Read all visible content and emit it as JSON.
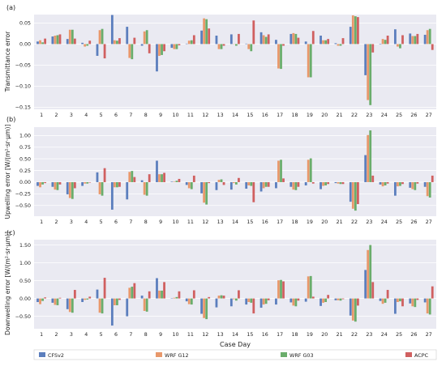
{
  "chart_data": [
    {
      "panel_label": "(a)",
      "type": "bar",
      "ylabel": "Transmittance error",
      "xlabel": "",
      "categories": [
        "1",
        "2",
        "3",
        "4",
        "5",
        "6",
        "7",
        "8",
        "9",
        "10",
        "11",
        "12",
        "13",
        "14",
        "15",
        "16",
        "17",
        "18",
        "19",
        "20",
        "21",
        "22",
        "23",
        "24",
        "25",
        "26",
        "27"
      ],
      "ylim": [
        -0.155,
        0.07
      ],
      "yticks": [
        0.05,
        0.0,
        -0.05,
        -0.1,
        -0.15
      ],
      "ytick_labels": [
        "0.05",
        "0.00",
        "−0.05",
        "−0.10",
        "−0.15"
      ],
      "grid": true,
      "series": [
        {
          "name": "CFSv2",
          "color": "#5b7ebd",
          "values": [
            0.006,
            0.018,
            0.012,
            0.003,
            -0.028,
            0.069,
            0.041,
            -0.004,
            -0.065,
            -0.009,
            0.001,
            0.032,
            0.02,
            0.023,
            0.001,
            0.028,
            0.01,
            0.024,
            0.006,
            0.02,
            0.002,
            0.041,
            -0.074,
            -0.001,
            0.035,
            0.025,
            0.022
          ]
        },
        {
          "name": "WRF G12",
          "color": "#e8986b",
          "values": [
            0.009,
            0.02,
            0.034,
            -0.006,
            0.033,
            0.009,
            -0.033,
            0.03,
            -0.028,
            -0.012,
            0.008,
            0.061,
            -0.012,
            0.0,
            -0.012,
            0.021,
            -0.058,
            0.026,
            -0.079,
            0.009,
            -0.004,
            0.068,
            -0.133,
            0.012,
            -0.006,
            0.019,
            0.033
          ]
        },
        {
          "name": "WRF G03",
          "color": "#6aad6b",
          "values": [
            0.004,
            0.021,
            0.034,
            -0.004,
            0.036,
            0.008,
            -0.036,
            0.033,
            -0.026,
            -0.012,
            0.009,
            0.059,
            -0.012,
            -0.004,
            -0.017,
            0.017,
            -0.059,
            0.024,
            -0.079,
            0.009,
            -0.004,
            0.066,
            -0.145,
            0.01,
            -0.01,
            0.019,
            0.036
          ]
        },
        {
          "name": "ACPC",
          "color": "#d06060",
          "values": [
            0.013,
            0.023,
            0.013,
            0.008,
            -0.034,
            0.014,
            0.015,
            -0.022,
            -0.017,
            -0.003,
            0.021,
            0.037,
            -0.004,
            0.024,
            0.056,
            0.023,
            -0.004,
            0.015,
            0.031,
            0.012,
            0.014,
            0.064,
            -0.02,
            0.02,
            0.021,
            0.024,
            -0.014
          ]
        }
      ]
    },
    {
      "panel_label": "(b)",
      "type": "bar",
      "ylabel": "Upwelling error [W/(m²·sr·μm)]",
      "xlabel": "",
      "categories": [
        "1",
        "2",
        "3",
        "4",
        "5",
        "6",
        "7",
        "8",
        "9",
        "10",
        "11",
        "12",
        "13",
        "14",
        "15",
        "16",
        "17",
        "18",
        "19",
        "20",
        "21",
        "22",
        "23",
        "24",
        "25",
        "26",
        "27"
      ],
      "ylim": [
        -0.73,
        1.18
      ],
      "yticks": [
        1.0,
        0.75,
        0.5,
        0.25,
        0.0,
        -0.25,
        -0.5
      ],
      "ytick_labels": [
        "1.00",
        "0.75",
        "0.50",
        "0.25",
        "0.00",
        "−0.25",
        "−0.50"
      ],
      "grid": true,
      "series": [
        {
          "name": "CFSv2",
          "color": "#5b7ebd",
          "values": [
            -0.08,
            -0.1,
            -0.26,
            -0.08,
            0.21,
            -0.59,
            -0.37,
            0.04,
            0.46,
            0.01,
            -0.06,
            -0.24,
            -0.17,
            -0.16,
            -0.14,
            -0.2,
            -0.13,
            -0.1,
            -0.07,
            -0.15,
            -0.02,
            -0.42,
            0.58,
            -0.05,
            -0.29,
            -0.12,
            -0.1
          ]
        },
        {
          "name": "WRF G12",
          "color": "#e8986b",
          "values": [
            -0.11,
            -0.16,
            -0.34,
            -0.03,
            -0.26,
            -0.11,
            0.22,
            -0.27,
            0.17,
            0.01,
            -0.13,
            -0.44,
            0.05,
            -0.02,
            -0.07,
            -0.13,
            0.46,
            -0.16,
            0.48,
            -0.08,
            -0.03,
            -0.57,
            1.01,
            -0.09,
            -0.09,
            -0.15,
            -0.3
          ]
        },
        {
          "name": "WRF G03",
          "color": "#6aad6b",
          "values": [
            -0.05,
            -0.17,
            -0.36,
            -0.03,
            -0.29,
            -0.11,
            0.24,
            -0.29,
            0.17,
            0.03,
            -0.15,
            -0.48,
            0.06,
            -0.05,
            -0.08,
            -0.1,
            0.48,
            -0.17,
            0.51,
            -0.07,
            -0.04,
            -0.61,
            1.11,
            -0.07,
            -0.08,
            -0.17,
            -0.33
          ]
        },
        {
          "name": "ACPC",
          "color": "#d06060",
          "values": [
            -0.02,
            -0.05,
            -0.13,
            -0.01,
            0.3,
            -0.1,
            0.11,
            0.17,
            0.2,
            0.07,
            0.14,
            -0.02,
            -0.06,
            0.09,
            -0.43,
            -0.1,
            0.08,
            -0.1,
            -0.03,
            -0.04,
            -0.04,
            -0.47,
            0.14,
            -0.03,
            -0.04,
            -0.03,
            0.14
          ]
        }
      ]
    },
    {
      "panel_label": "(c)",
      "type": "bar",
      "ylabel": "Downwelling error [W/(m²·sr·μm)]",
      "xlabel": "Case Day",
      "categories": [
        "1",
        "2",
        "3",
        "4",
        "5",
        "6",
        "7",
        "8",
        "9",
        "10",
        "11",
        "12",
        "13",
        "14",
        "15",
        "16",
        "17",
        "18",
        "19",
        "20",
        "21",
        "22",
        "23",
        "24",
        "25",
        "26",
        "27"
      ],
      "ylim": [
        -0.85,
        1.65
      ],
      "yticks": [
        1.5,
        1.0,
        0.5,
        0.0,
        -0.5
      ],
      "ytick_labels": [
        "1.50",
        "1.00",
        "0.50",
        "0.00",
        "−0.50"
      ],
      "grid": true,
      "series": [
        {
          "name": "CFSv2",
          "color": "#5b7ebd",
          "values": [
            -0.1,
            -0.12,
            -0.3,
            -0.1,
            0.25,
            -0.76,
            -0.5,
            0.08,
            0.57,
            0.01,
            -0.08,
            -0.43,
            -0.25,
            -0.22,
            -0.17,
            -0.26,
            -0.17,
            -0.11,
            -0.09,
            -0.21,
            -0.05,
            -0.48,
            0.8,
            -0.07,
            -0.43,
            -0.14,
            -0.11
          ]
        },
        {
          "name": "WRF G12",
          "color": "#e8986b",
          "values": [
            -0.16,
            -0.18,
            -0.38,
            -0.04,
            -0.4,
            -0.19,
            0.3,
            -0.35,
            0.22,
            0.02,
            -0.16,
            -0.55,
            0.08,
            -0.02,
            -0.1,
            -0.17,
            0.51,
            -0.2,
            0.62,
            -0.12,
            -0.05,
            -0.62,
            1.36,
            -0.15,
            -0.1,
            -0.22,
            -0.42
          ]
        },
        {
          "name": "WRF G03",
          "color": "#6aad6b",
          "values": [
            -0.07,
            -0.19,
            -0.4,
            -0.03,
            -0.42,
            -0.19,
            0.33,
            -0.37,
            0.22,
            0.04,
            -0.17,
            -0.58,
            0.09,
            -0.06,
            -0.12,
            -0.15,
            0.52,
            -0.22,
            0.63,
            -0.1,
            -0.06,
            -0.65,
            1.5,
            -0.12,
            -0.08,
            -0.24,
            -0.45
          ]
        },
        {
          "name": "ACPC",
          "color": "#d06060",
          "values": [
            0.03,
            0.02,
            0.24,
            0.05,
            0.58,
            -0.04,
            0.43,
            0.2,
            0.46,
            0.2,
            0.23,
            0.04,
            0.08,
            0.23,
            -0.42,
            -0.05,
            0.48,
            -0.06,
            0.05,
            0.1,
            -0.02,
            -0.2,
            0.46,
            0.24,
            -0.22,
            -0.04,
            0.34
          ]
        }
      ]
    }
  ],
  "legend": {
    "placement": "bottom",
    "entries": [
      {
        "name": "CFSv2",
        "color": "#5b7ebd"
      },
      {
        "name": "WRF G12",
        "color": "#e8986b"
      },
      {
        "name": "WRF G03",
        "color": "#6aad6b"
      },
      {
        "name": "ACPC",
        "color": "#d06060"
      }
    ]
  }
}
